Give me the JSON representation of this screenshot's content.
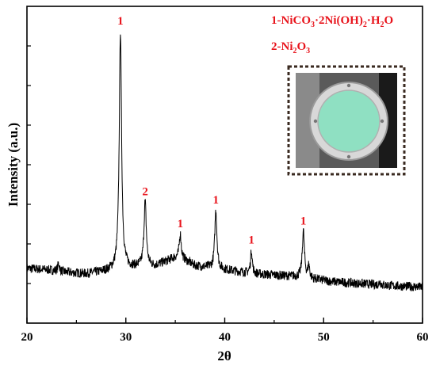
{
  "chart_data": {
    "type": "line",
    "xlabel": "2θ",
    "ylabel": "Intensity (a.u.)",
    "xlim": [
      20,
      60
    ],
    "x_ticks": [
      "20",
      "30",
      "40",
      "50",
      "60"
    ],
    "y_ticks_labeled": false,
    "grid": false,
    "line_color": "#000000",
    "label_color": "#e8141c",
    "legend": {
      "placement": "top-right",
      "entries": [
        {
          "prefix": "1-NiCO",
          "sub1": "3",
          "mid1": "·2Ni(OH)",
          "sub2": "2",
          "mid2": "·H",
          "sub3": "2",
          "suffix": "O"
        },
        {
          "prefix": "2-Ni",
          "sub1": "2",
          "mid1": "O",
          "sub2": "3",
          "mid2": "",
          "sub3": "",
          "suffix": ""
        }
      ]
    },
    "inset": {
      "description": "photo",
      "colors": {
        "frame": "#333333",
        "disc": "#7fdcbc",
        "ring": "#c8c8c8"
      }
    },
    "baseline": [
      [
        20,
        0.11
      ],
      [
        22,
        0.105
      ],
      [
        24,
        0.095
      ],
      [
        26,
        0.09
      ],
      [
        28,
        0.1
      ],
      [
        29,
        0.105
      ],
      [
        31,
        0.115
      ],
      [
        33,
        0.12
      ],
      [
        34,
        0.135
      ],
      [
        35,
        0.15
      ],
      [
        36,
        0.14
      ],
      [
        37,
        0.12
      ],
      [
        39,
        0.11
      ],
      [
        41,
        0.1
      ],
      [
        43,
        0.09
      ],
      [
        45,
        0.085
      ],
      [
        47,
        0.08
      ],
      [
        49,
        0.07
      ],
      [
        51,
        0.06
      ],
      [
        53,
        0.055
      ],
      [
        55,
        0.05
      ],
      [
        57,
        0.045
      ],
      [
        60,
        0.04
      ]
    ],
    "peaks": [
      {
        "x": 29.45,
        "y": 1.0,
        "width": 0.14,
        "label": "1"
      },
      {
        "x": 31.95,
        "y": 0.36,
        "width": 0.14,
        "label": "2"
      },
      {
        "x": 35.5,
        "y": 0.24,
        "width": 0.12,
        "label": "1"
      },
      {
        "x": 39.1,
        "y": 0.33,
        "width": 0.13,
        "label": "1"
      },
      {
        "x": 42.7,
        "y": 0.18,
        "width": 0.1,
        "label": "1"
      },
      {
        "x": 47.95,
        "y": 0.25,
        "width": 0.13,
        "label": "1"
      }
    ],
    "minor_peaks": [
      {
        "x": 23.2,
        "y": 0.13,
        "width": 0.1
      },
      {
        "x": 48.5,
        "y": 0.12,
        "width": 0.1
      },
      {
        "x": 55.7,
        "y": 0.06,
        "width": 0.1
      }
    ]
  }
}
